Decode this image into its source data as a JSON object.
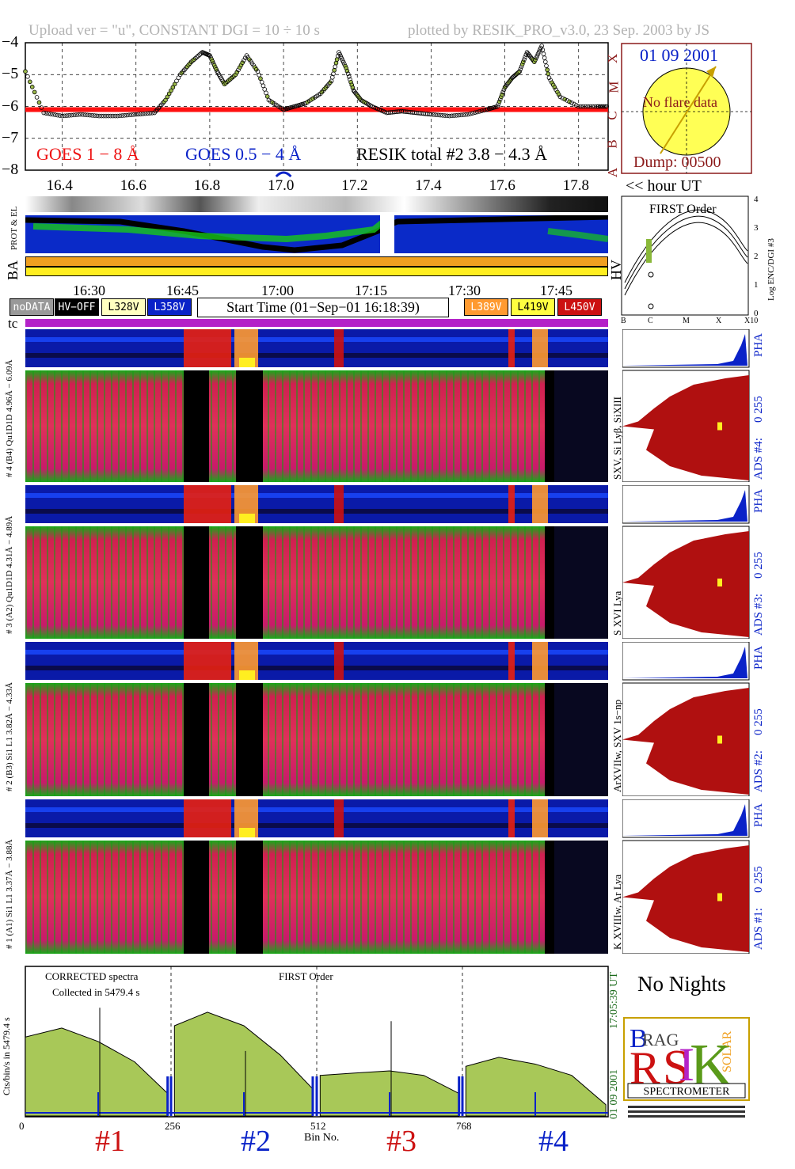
{
  "header": {
    "upload": "Upload ver = \"u\", CONSTANT  DGI =  10 ÷  10 s",
    "plotted": "plotted by RESIK_PRO_v3.0, 23 Sep. 2003 by JS"
  },
  "goes": {
    "y_ticks": [
      "−4",
      "−5",
      "−6",
      "−7",
      "−8"
    ],
    "class_letters": [
      "X",
      "M",
      "C",
      "B",
      "A"
    ],
    "legend_red": "GOES 1 − 8 Å",
    "legend_blue": "GOES 0.5 − 4 Å",
    "legend_black": "RESIK total #2  3.8 − 4.3 Å",
    "x_ticks": [
      "16.4",
      "16.6",
      "16.8",
      "17.0",
      "17.2",
      "17.4",
      "17.6",
      "17.8"
    ],
    "x_unit": "<< hour UT"
  },
  "sun_panel": {
    "date": "01 09 2001",
    "note": "No flare data",
    "dump": "Dump: 00500"
  },
  "orbit": {
    "labels": {
      "prot_el": "PROT & EL",
      "ba": "BA",
      "hv": "HV"
    },
    "first_order": "FIRST Order",
    "y_label": "Log ENC/DGI #3",
    "y_ticks": [
      "4",
      "3",
      "2",
      "1",
      "0"
    ],
    "x_ticks": [
      "B",
      "C",
      "M",
      "X",
      "X10"
    ],
    "circle_mark": "0"
  },
  "time_axis": {
    "ticks": [
      "16:30",
      "16:45",
      "17:00",
      "17:15",
      "17:30",
      "17:45"
    ]
  },
  "legend": {
    "nodata": "noDATA",
    "hvoff": "HV−OFF",
    "v1": "L328V",
    "v2": "L358V",
    "start": "Start Time (01−Sep−01 16:18:39)",
    "v3": "L389V",
    "v4": "L419V",
    "v5": "L450V",
    "colors": {
      "nodata": "#999999",
      "hvoff": "#000000",
      "v1": "#ffffc0",
      "v2": "#0a22c8",
      "v3": "#ff9a30",
      "v4": "#ffff40",
      "v5": "#cc1111"
    }
  },
  "tc_label": "tc",
  "channels": [
    {
      "id": "#4",
      "range_label": "4.96Å − 6.09Å",
      "left_label": "# 4 (B4) Qu1D1D 4.96Å − 6.09Å",
      "lines": "SXV, Si Lyβ, SiXIII",
      "ads": "ADS #4:",
      "scale": "0 255",
      "pha": "PHA"
    },
    {
      "id": "#3",
      "range_label": "4.31Å − 4.89Å",
      "left_label": "# 3 (A2) Qu1D1D 4.31Å − 4.89Å",
      "lines": "S XVI Lya",
      "ads": "ADS #3:",
      "scale": "0 255",
      "pha": "PHA"
    },
    {
      "id": "#2",
      "range_label": "3.82Å − 4.33Å",
      "left_label": "# 2 (B3) Si1 L1 3.82Å − 4.33Å",
      "lines": "ArXVIIw, SXV 1s−np",
      "ads": "ADS #2:",
      "scale": "0 255",
      "pha": "PHA"
    },
    {
      "id": "#1",
      "range_label": "3.37Å − 3.88Å",
      "left_label": "# 1 (A1) Si1 L1 3.37Å − 3.88Å",
      "lines": "K XVIIIw, Ar Lya",
      "ads": "ADS #1:",
      "scale": "0 255",
      "pha": "PHA"
    }
  ],
  "spectrum": {
    "title_left": "CORRECTED spectra",
    "collected": "Collected in  5479.4 s",
    "title_mid": "FIRST Order",
    "ylabel": "Cts/bin/s in 5479.4 s",
    "x_ticks": [
      "0",
      "256",
      "512",
      "768"
    ],
    "xlabel": "Bin No.",
    "section_labels": [
      "#1",
      "#2",
      "#3",
      "#4"
    ],
    "right_time": "17:05:39 UT",
    "right_date": "01 09 2001"
  },
  "no_nights": "No Nights",
  "logo": {
    "word": "SPECTROMETER"
  },
  "chart_data": [
    {
      "type": "line",
      "title": "",
      "xlabel": "<< hour UT",
      "ylabel": "",
      "xlim": [
        16.3,
        17.88
      ],
      "ylim": [
        -8,
        -4
      ],
      "series": [
        {
          "name": "GOES 1 − 8 Å",
          "color": "#ff1010",
          "x": [
            16.3,
            16.6,
            16.9,
            17.2,
            17.5,
            17.88
          ],
          "y": [
            -6.1,
            -6.1,
            -6.1,
            -6.1,
            -6.1,
            -6.1
          ]
        },
        {
          "name": "RESIK total #2  3.8 − 4.3 Å",
          "color": "#000000",
          "x": [
            16.3,
            16.35,
            16.4,
            16.45,
            16.5,
            16.55,
            16.6,
            16.65,
            16.68,
            16.72,
            16.75,
            16.78,
            16.8,
            16.82,
            16.84,
            16.87,
            16.9,
            16.93,
            16.96,
            17.0,
            17.03,
            17.06,
            17.1,
            17.13,
            17.15,
            17.17,
            17.19,
            17.21,
            17.24,
            17.28,
            17.32,
            17.36,
            17.4,
            17.45,
            17.5,
            17.55,
            17.58,
            17.6,
            17.62,
            17.64,
            17.66,
            17.68,
            17.7,
            17.72,
            17.75,
            17.8,
            17.85,
            17.88
          ],
          "y": [
            -4.9,
            -6.2,
            -6.3,
            -6.25,
            -6.3,
            -6.3,
            -6.25,
            -6.2,
            -5.8,
            -5.0,
            -4.6,
            -4.3,
            -4.4,
            -4.9,
            -5.3,
            -5.0,
            -4.4,
            -4.9,
            -5.8,
            -6.1,
            -6.0,
            -5.9,
            -5.6,
            -5.2,
            -4.3,
            -4.8,
            -5.5,
            -5.8,
            -6.0,
            -6.2,
            -6.15,
            -6.2,
            -6.25,
            -6.3,
            -6.25,
            -6.1,
            -6.0,
            -5.4,
            -5.1,
            -4.9,
            -4.3,
            -4.6,
            -4.1,
            -5.1,
            -5.7,
            -6.0,
            -6.0,
            -6.0
          ]
        }
      ]
    },
    {
      "type": "area",
      "title": "CORRECTED spectra",
      "xlabel": "Bin No.",
      "ylabel": "Cts/bin/s in 5479.4 s",
      "xlim": [
        0,
        1024
      ],
      "x_ticks": [
        0,
        256,
        512,
        768
      ],
      "series": [
        {
          "name": "#1",
          "x": [
            0,
            64,
            128,
            192,
            250
          ],
          "y": [
            0.35,
            0.39,
            0.33,
            0.24,
            0.1
          ]
        },
        {
          "name": "#2",
          "x": [
            262,
            320,
            384,
            448,
            505
          ],
          "y": [
            0.4,
            0.46,
            0.4,
            0.27,
            0.12
          ]
        },
        {
          "name": "#3",
          "x": [
            518,
            576,
            640,
            700,
            762
          ],
          "y": [
            0.18,
            0.19,
            0.2,
            0.18,
            0.1
          ]
        },
        {
          "name": "#4",
          "x": [
            774,
            832,
            896,
            960,
            1020
          ],
          "y": [
            0.22,
            0.26,
            0.23,
            0.18,
            0.05
          ]
        }
      ]
    }
  ]
}
